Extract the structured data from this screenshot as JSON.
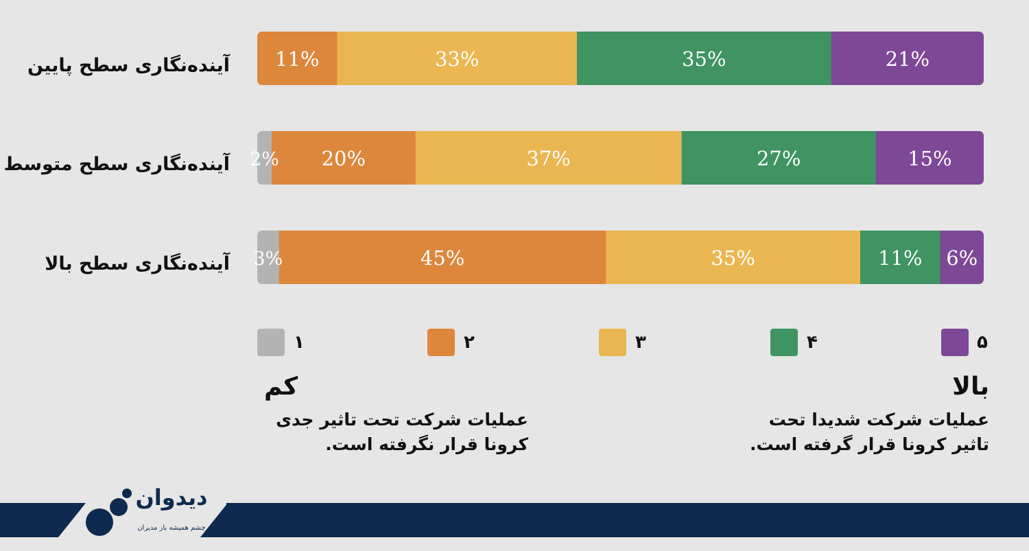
{
  "chart_data": {
    "type": "bar",
    "orientation": "horizontal-stacked",
    "categories": [
      "آینده‌نگاری سطح پایین",
      "آینده‌نگاری سطح متوسط",
      "آینده‌نگاری سطح بالا"
    ],
    "series": [
      {
        "name": "۱",
        "color": "#b3b3b3",
        "values": [
          0,
          2,
          3
        ],
        "labels": [
          "",
          "2%",
          "3%"
        ]
      },
      {
        "name": "۲",
        "color": "#dd873d",
        "values": [
          11,
          20,
          45
        ],
        "labels": [
          "11%",
          "20%",
          "45%"
        ]
      },
      {
        "name": "۳",
        "color": "#eab651",
        "values": [
          33,
          37,
          35
        ],
        "labels": [
          "33%",
          "37%",
          "35%"
        ]
      },
      {
        "name": "۴",
        "color": "#3f9462",
        "values": [
          35,
          27,
          11
        ],
        "labels": [
          "35%",
          "27%",
          "11%"
        ]
      },
      {
        "name": "۵",
        "color": "#7d4896",
        "values": [
          21,
          15,
          6
        ],
        "labels": [
          "21%",
          "15%",
          "6%"
        ]
      }
    ],
    "legend": "bottom"
  },
  "scale": {
    "low": {
      "title": "کم",
      "lines": [
        "عملیات شرکت تحت تاثیر جدی",
        "کرونا قرار نگرفته است."
      ]
    },
    "high": {
      "title": "بالا",
      "lines": [
        "عملیات شرکت شدیدا تحت",
        "تاثیر کرونا قرار گرفته است."
      ]
    }
  },
  "logo": {
    "name": "دیدوان",
    "tagline": "چشم همیشه باز مدیران",
    "color": "#0e2a4f"
  }
}
